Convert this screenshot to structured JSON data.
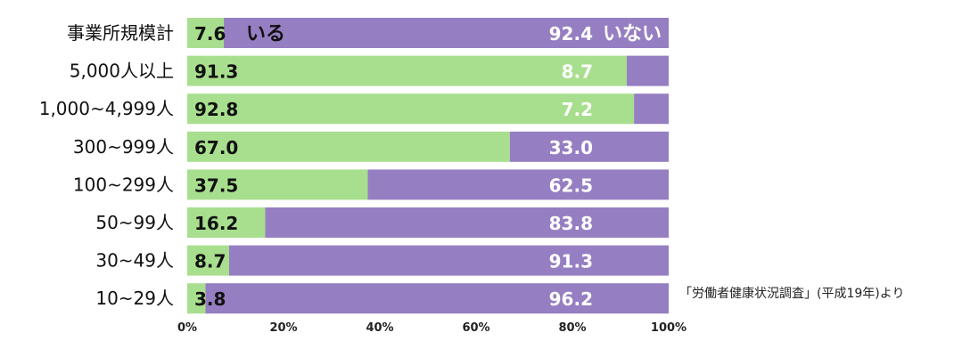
{
  "chart_data": {
    "type": "bar",
    "orientation": "horizontal",
    "stacked": true,
    "categories": [
      "事業所規模計",
      "5,000人以上",
      "1,000~4,999人",
      "300~999人",
      "100~299人",
      "50~99人",
      "30~49人",
      "10~29人"
    ],
    "series": [
      {
        "name": "いる",
        "values": [
          7.6,
          91.3,
          92.8,
          67.0,
          37.5,
          16.2,
          8.7,
          3.8
        ]
      },
      {
        "name": "いない",
        "values": [
          92.4,
          8.7,
          7.2,
          33.0,
          62.5,
          83.8,
          91.3,
          96.2
        ]
      }
    ],
    "value_labels": [
      [
        "7.6",
        "92.4"
      ],
      [
        "91.3",
        "8.7"
      ],
      [
        "92.8",
        "7.2"
      ],
      [
        "67.0",
        "33.0"
      ],
      [
        "37.5",
        "62.5"
      ],
      [
        "16.2",
        "83.8"
      ],
      [
        "8.7",
        "91.3"
      ],
      [
        "3.8",
        "96.2"
      ]
    ],
    "xlim": [
      0,
      100
    ],
    "xticks": [
      "0%",
      "20%",
      "40%",
      "60%",
      "80%",
      "100%"
    ],
    "grid": false,
    "legend_placement": "inside-first-bar",
    "colors": {
      "いる": "#a8df8e",
      "いない": "#967ec2"
    },
    "source_note": "「労働者健康状況調査」(平成19年)より"
  }
}
